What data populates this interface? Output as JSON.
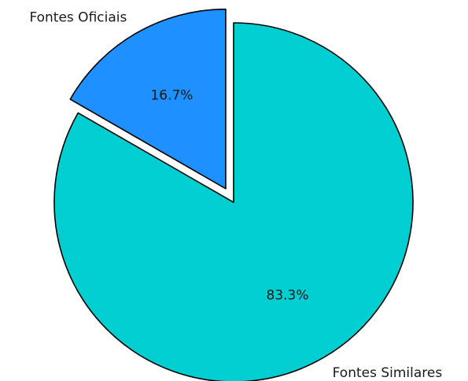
{
  "chart_data": {
    "type": "pie",
    "labels": [
      "Fontes Oficiais",
      "Fontes Similares"
    ],
    "values": [
      16.7,
      83.3
    ],
    "value_labels": [
      "16.7%",
      "83.3%"
    ],
    "colors": [
      "#1e90ff",
      "#00ced1"
    ],
    "edge_color": "#000000",
    "exploded": [
      true,
      false
    ],
    "start_angle_deg": 90,
    "direction": "counterclockwise"
  }
}
